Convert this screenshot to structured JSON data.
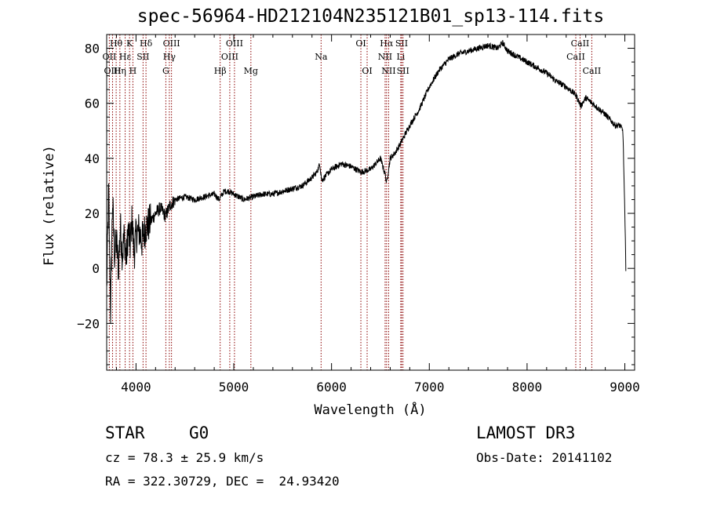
{
  "chart_data": {
    "type": "line",
    "title": "spec-56964-HD212104N235121B01_sp13-114.fits",
    "xlabel": "Wavelength (Å)",
    "ylabel": "Flux (relative)",
    "xlim": [
      3700,
      9100
    ],
    "ylim": [
      -37,
      85
    ],
    "xticks": [
      4000,
      5000,
      6000,
      7000,
      8000,
      9000
    ],
    "yticks": [
      -20,
      0,
      20,
      40,
      60,
      80
    ],
    "tick_labels_y": [
      "−20",
      "0",
      "20",
      "40",
      "60",
      "80"
    ],
    "series": [
      {
        "name": "flux",
        "x": [
          3700,
          3720,
          3740,
          3760,
          3780,
          3800,
          3820,
          3840,
          3860,
          3880,
          3900,
          3920,
          3940,
          3960,
          3980,
          4000,
          4030,
          4060,
          4100,
          4150,
          4200,
          4250,
          4300,
          4350,
          4400,
          4500,
          4600,
          4700,
          4800,
          4850,
          4900,
          4950,
          5000,
          5100,
          5200,
          5300,
          5400,
          5500,
          5600,
          5700,
          5800,
          5850,
          5880,
          5900,
          5950,
          6000,
          6100,
          6200,
          6300,
          6400,
          6450,
          6500,
          6550,
          6563,
          6600,
          6650,
          6700,
          6800,
          6900,
          7000,
          7100,
          7200,
          7300,
          7400,
          7500,
          7600,
          7700,
          7750,
          7800,
          7850,
          7900,
          7950,
          8000,
          8100,
          8200,
          8300,
          8400,
          8500,
          8550,
          8600,
          8700,
          8800,
          8850,
          8900,
          8950,
          8980,
          9000,
          9010
        ],
        "y": [
          -8,
          28,
          -16,
          25,
          5,
          10,
          0,
          15,
          5,
          12,
          3,
          14,
          8,
          18,
          5,
          12,
          14,
          10,
          15,
          17,
          20,
          22,
          19,
          23,
          25,
          26,
          25,
          26,
          27,
          25,
          28,
          28,
          27,
          25,
          26,
          27,
          27,
          28,
          29,
          30,
          33,
          35,
          38,
          32,
          34,
          36,
          38,
          37,
          35,
          36,
          38,
          40,
          34,
          31,
          40,
          42,
          45,
          52,
          58,
          66,
          72,
          76,
          78,
          79,
          80,
          81,
          80,
          82,
          79,
          78,
          77,
          76,
          75,
          73,
          71,
          68,
          66,
          63,
          59,
          62,
          59,
          56,
          54,
          52,
          52,
          50,
          20,
          0
        ]
      }
    ],
    "line_markers": [
      {
        "label": "Hθ",
        "wavelength": 3797,
        "row": 0
      },
      {
        "label": "OII",
        "wavelength": 3727,
        "row": 1
      },
      {
        "label": "OIII",
        "wavelength": 3760,
        "row": 2
      },
      {
        "label": "K",
        "wavelength": 3934,
        "row": 0
      },
      {
        "label": "Hε",
        "wavelength": 3889,
        "row": 1
      },
      {
        "label": "Hη",
        "wavelength": 3835,
        "row": 2
      },
      {
        "label": "SII",
        "wavelength": 4072,
        "row": 1
      },
      {
        "label": "H",
        "wavelength": 3968,
        "row": 2
      },
      {
        "label": "Hδ",
        "wavelength": 4102,
        "row": 0
      },
      {
        "label": "OIII",
        "wavelength": 4363,
        "row": 0
      },
      {
        "label": "Hγ",
        "wavelength": 4341,
        "row": 1
      },
      {
        "label": "G",
        "wavelength": 4305,
        "row": 2
      },
      {
        "label": "Hβ",
        "wavelength": 4861,
        "row": 2
      },
      {
        "label": "OIII",
        "wavelength": 5007,
        "row": 0
      },
      {
        "label": "OIII",
        "wavelength": 4959,
        "row": 1
      },
      {
        "label": "Mg",
        "wavelength": 5175,
        "row": 2
      },
      {
        "label": "Na",
        "wavelength": 5893,
        "row": 1
      },
      {
        "label": "OI",
        "wavelength": 6300,
        "row": 0
      },
      {
        "label": "OI",
        "wavelength": 6364,
        "row": 2
      },
      {
        "label": "Hα",
        "wavelength": 6563,
        "row": 0
      },
      {
        "label": "NII",
        "wavelength": 6548,
        "row": 1
      },
      {
        "label": "NII",
        "wavelength": 6584,
        "row": 2
      },
      {
        "label": "SII",
        "wavelength": 6717,
        "row": 0
      },
      {
        "label": "Li",
        "wavelength": 6708,
        "row": 1
      },
      {
        "label": "SII",
        "wavelength": 6731,
        "row": 2
      },
      {
        "label": "CaII",
        "wavelength": 8542,
        "row": 0
      },
      {
        "label": "CaII",
        "wavelength": 8498,
        "row": 1
      },
      {
        "label": "CaII",
        "wavelength": 8662,
        "row": 2
      }
    ],
    "grid": false,
    "colors": {
      "spectrum": "#000000",
      "markers": "#8b0000",
      "axes": "#000000"
    }
  },
  "info": {
    "object_class": "STAR",
    "subclass": "G0",
    "survey": "LAMOST DR3",
    "cz": "cz = 78.3 ± 25.9 km/s",
    "obs_date": "Obs-Date: 20141102",
    "radec": "RA = 322.30729, DEC =  24.93420"
  }
}
